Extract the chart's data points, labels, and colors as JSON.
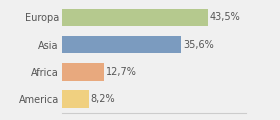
{
  "categories": [
    "Europa",
    "Asia",
    "Africa",
    "America"
  ],
  "values": [
    43.5,
    35.6,
    12.7,
    8.2
  ],
  "labels": [
    "43,5%",
    "35,6%",
    "12,7%",
    "8,2%"
  ],
  "bar_colors": [
    "#b5c98e",
    "#7b9bbf",
    "#e8a97e",
    "#f0d080"
  ],
  "background_color": "#f0f0f0",
  "xlim": [
    0,
    55
  ],
  "bar_height": 0.65,
  "label_fontsize": 7.0,
  "tick_fontsize": 7.0,
  "label_color": "#555555",
  "tick_color": "#555555",
  "spine_color": "#cccccc"
}
